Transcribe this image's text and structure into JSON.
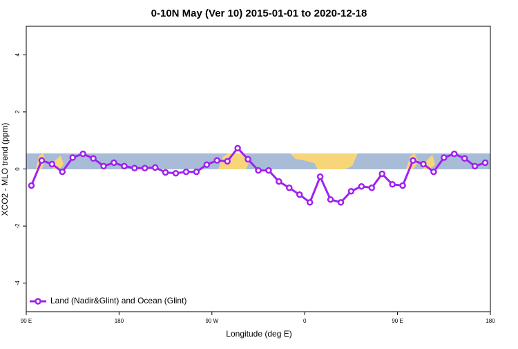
{
  "chart_data": {
    "type": "line",
    "title": "0-10N May (Ver 10)   2015-01-01 to 2020-12-18",
    "x_label": "Longitude (deg E)",
    "y_label": "XCO2 - MLO trend (ppm)",
    "x": [
      95,
      105,
      115,
      125,
      135,
      145,
      155,
      165,
      175,
      185,
      195,
      205,
      215,
      225,
      235,
      245,
      255,
      265,
      275,
      285,
      295,
      305,
      315,
      325,
      335,
      345,
      355,
      365,
      375,
      385,
      395,
      405,
      415,
      425,
      435,
      445,
      455,
      465,
      475,
      485,
      495,
      505,
      515,
      525,
      535
    ],
    "series": [
      {
        "name": "Land (Nadir&Glint) and Ocean (Glint)",
        "color": "#a020f0",
        "values": [
          -0.58,
          0.3,
          0.17,
          -0.1,
          0.4,
          0.53,
          0.37,
          0.1,
          0.22,
          0.1,
          0.03,
          0.03,
          0.05,
          -0.12,
          -0.15,
          -0.1,
          -0.1,
          0.15,
          0.3,
          0.27,
          0.73,
          0.34,
          -0.05,
          -0.05,
          -0.44,
          -0.66,
          -0.9,
          -1.17,
          -0.27,
          -1.07,
          -1.17,
          -0.78,
          -0.61,
          -0.66,
          -0.17,
          -0.54,
          -0.58,
          0.3,
          0.17,
          -0.1,
          0.4,
          0.53,
          0.37,
          0.1,
          0.22
        ]
      }
    ],
    "xlim": [
      90,
      540
    ],
    "xticks": [
      {
        "value": 90,
        "label": "90 E"
      },
      {
        "value": 180,
        "label": "180"
      },
      {
        "value": 270,
        "label": "90 W"
      },
      {
        "value": 360,
        "label": "0"
      },
      {
        "value": 450,
        "label": "90 E"
      },
      {
        "value": 540,
        "label": "180"
      }
    ],
    "ylim": [
      -5,
      5
    ],
    "yticks": [
      -4,
      -2,
      0,
      2,
      4
    ],
    "legend": "bottom-left"
  }
}
